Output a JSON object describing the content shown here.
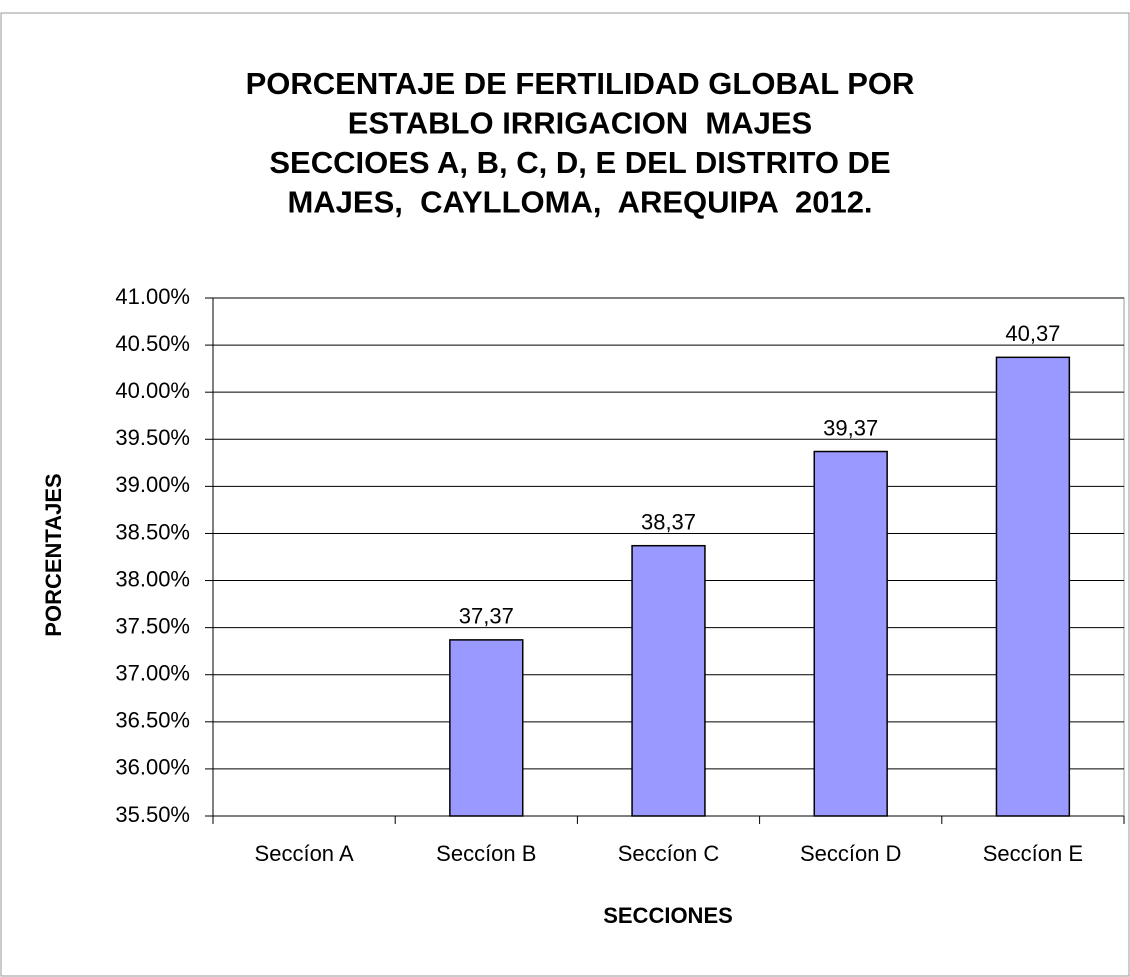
{
  "chart_data": {
    "type": "bar",
    "title": [
      "PORCENTAJE DE FERTILIDAD GLOBAL POR",
      "ESTABLO IRRIGACION  MAJES",
      "SECCIOES A, B, C, D, E DEL DISTRITO DE",
      "MAJES,  CAYLLOMA,  AREQUIPA  2012."
    ],
    "x_label": "SECCIONES",
    "y_label": "PORCENTAJES",
    "categories": [
      "Seccíon A",
      "Seccíon B",
      "Seccíon C",
      "Seccíon D",
      "Seccíon E"
    ],
    "values": [
      null,
      37.37,
      38.37,
      39.37,
      40.37
    ],
    "value_labels": [
      null,
      "37,37",
      "38,37",
      "39,37",
      "40,37"
    ],
    "color": "#9999ff",
    "ylim": [
      35.5,
      41
    ],
    "yticks": [
      {
        "value": 35.5,
        "label": "35.50%"
      },
      {
        "value": 36,
        "label": "36.00%"
      },
      {
        "value": 36.5,
        "label": "36.50%"
      },
      {
        "value": 37,
        "label": "37.00%"
      },
      {
        "value": 37.5,
        "label": "37.50%"
      },
      {
        "value": 38,
        "label": "38.00%"
      },
      {
        "value": 38.5,
        "label": "38.50%"
      },
      {
        "value": 39,
        "label": "39.00%"
      },
      {
        "value": 39.5,
        "label": "39.50%"
      },
      {
        "value": 40,
        "label": "40.00%"
      },
      {
        "value": 40.5,
        "label": "40.50%"
      },
      {
        "value": 41,
        "label": "41.00%"
      }
    ],
    "grid": true
  }
}
